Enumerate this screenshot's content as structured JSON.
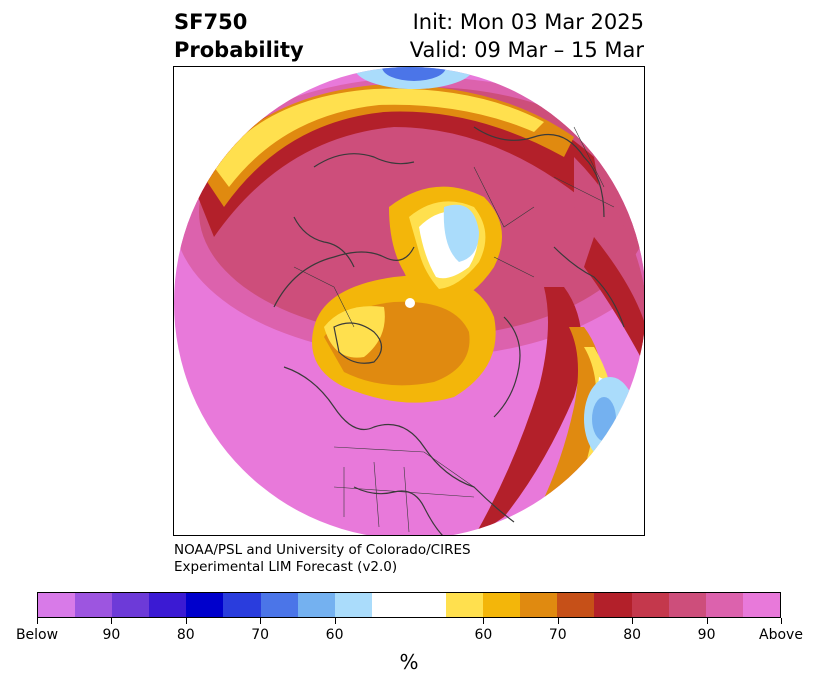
{
  "header": {
    "product": "SF750",
    "product_type": "Probability",
    "init": "Init: Mon 03 Mar 2025",
    "valid": "Valid: 09 Mar – 15 Mar"
  },
  "credit": {
    "line1": "NOAA/PSL and University of Colorado/CIRES",
    "line2": "Experimental LIM Forecast (v2.0)"
  },
  "colorbar": {
    "unit": "%",
    "colors": [
      "#d87ae8",
      "#9d55e0",
      "#6d3ad8",
      "#3b1ad3",
      "#0000cc",
      "#2a3ddd",
      "#4b75e8",
      "#74b1f0",
      "#aadcfb",
      "#ffffff",
      "#ffffff",
      "#ffe04e",
      "#f3b60a",
      "#e08a10",
      "#c65018",
      "#b3202a",
      "#c4384c",
      "#cd4e7b",
      "#dc62ad",
      "#e879da"
    ],
    "tick_labels": [
      "Below",
      "90",
      "80",
      "70",
      "60",
      "60",
      "70",
      "80",
      "90",
      "Above"
    ]
  }
}
